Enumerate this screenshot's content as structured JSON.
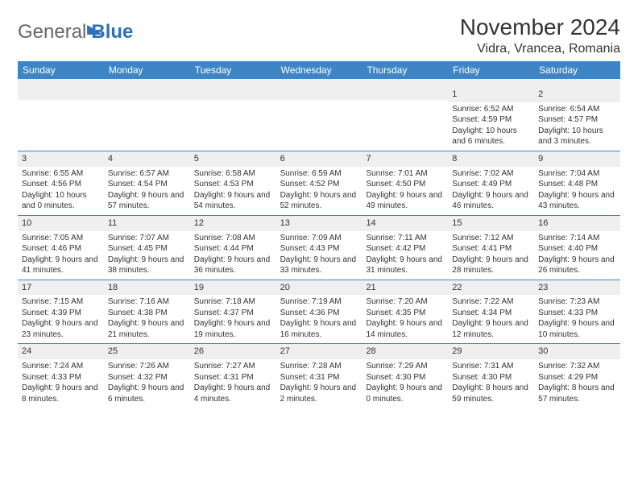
{
  "logo": {
    "text1": "General",
    "text2": "Blue"
  },
  "title": "November 2024",
  "location": "Vidra, Vrancea, Romania",
  "colors": {
    "header_bg": "#3d85c6",
    "header_text": "#ffffff",
    "spacer_bg": "#efefef",
    "border": "#3d85c6",
    "text": "#333333",
    "logo_gray": "#666666",
    "logo_blue": "#2d72b8"
  },
  "weekdays": [
    "Sunday",
    "Monday",
    "Tuesday",
    "Wednesday",
    "Thursday",
    "Friday",
    "Saturday"
  ],
  "weeks": [
    [
      null,
      null,
      null,
      null,
      null,
      {
        "n": "1",
        "sr": "Sunrise: 6:52 AM",
        "ss": "Sunset: 4:59 PM",
        "dl": "Daylight: 10 hours and 6 minutes."
      },
      {
        "n": "2",
        "sr": "Sunrise: 6:54 AM",
        "ss": "Sunset: 4:57 PM",
        "dl": "Daylight: 10 hours and 3 minutes."
      }
    ],
    [
      {
        "n": "3",
        "sr": "Sunrise: 6:55 AM",
        "ss": "Sunset: 4:56 PM",
        "dl": "Daylight: 10 hours and 0 minutes."
      },
      {
        "n": "4",
        "sr": "Sunrise: 6:57 AM",
        "ss": "Sunset: 4:54 PM",
        "dl": "Daylight: 9 hours and 57 minutes."
      },
      {
        "n": "5",
        "sr": "Sunrise: 6:58 AM",
        "ss": "Sunset: 4:53 PM",
        "dl": "Daylight: 9 hours and 54 minutes."
      },
      {
        "n": "6",
        "sr": "Sunrise: 6:59 AM",
        "ss": "Sunset: 4:52 PM",
        "dl": "Daylight: 9 hours and 52 minutes."
      },
      {
        "n": "7",
        "sr": "Sunrise: 7:01 AM",
        "ss": "Sunset: 4:50 PM",
        "dl": "Daylight: 9 hours and 49 minutes."
      },
      {
        "n": "8",
        "sr": "Sunrise: 7:02 AM",
        "ss": "Sunset: 4:49 PM",
        "dl": "Daylight: 9 hours and 46 minutes."
      },
      {
        "n": "9",
        "sr": "Sunrise: 7:04 AM",
        "ss": "Sunset: 4:48 PM",
        "dl": "Daylight: 9 hours and 43 minutes."
      }
    ],
    [
      {
        "n": "10",
        "sr": "Sunrise: 7:05 AM",
        "ss": "Sunset: 4:46 PM",
        "dl": "Daylight: 9 hours and 41 minutes."
      },
      {
        "n": "11",
        "sr": "Sunrise: 7:07 AM",
        "ss": "Sunset: 4:45 PM",
        "dl": "Daylight: 9 hours and 38 minutes."
      },
      {
        "n": "12",
        "sr": "Sunrise: 7:08 AM",
        "ss": "Sunset: 4:44 PM",
        "dl": "Daylight: 9 hours and 36 minutes."
      },
      {
        "n": "13",
        "sr": "Sunrise: 7:09 AM",
        "ss": "Sunset: 4:43 PM",
        "dl": "Daylight: 9 hours and 33 minutes."
      },
      {
        "n": "14",
        "sr": "Sunrise: 7:11 AM",
        "ss": "Sunset: 4:42 PM",
        "dl": "Daylight: 9 hours and 31 minutes."
      },
      {
        "n": "15",
        "sr": "Sunrise: 7:12 AM",
        "ss": "Sunset: 4:41 PM",
        "dl": "Daylight: 9 hours and 28 minutes."
      },
      {
        "n": "16",
        "sr": "Sunrise: 7:14 AM",
        "ss": "Sunset: 4:40 PM",
        "dl": "Daylight: 9 hours and 26 minutes."
      }
    ],
    [
      {
        "n": "17",
        "sr": "Sunrise: 7:15 AM",
        "ss": "Sunset: 4:39 PM",
        "dl": "Daylight: 9 hours and 23 minutes."
      },
      {
        "n": "18",
        "sr": "Sunrise: 7:16 AM",
        "ss": "Sunset: 4:38 PM",
        "dl": "Daylight: 9 hours and 21 minutes."
      },
      {
        "n": "19",
        "sr": "Sunrise: 7:18 AM",
        "ss": "Sunset: 4:37 PM",
        "dl": "Daylight: 9 hours and 19 minutes."
      },
      {
        "n": "20",
        "sr": "Sunrise: 7:19 AM",
        "ss": "Sunset: 4:36 PM",
        "dl": "Daylight: 9 hours and 16 minutes."
      },
      {
        "n": "21",
        "sr": "Sunrise: 7:20 AM",
        "ss": "Sunset: 4:35 PM",
        "dl": "Daylight: 9 hours and 14 minutes."
      },
      {
        "n": "22",
        "sr": "Sunrise: 7:22 AM",
        "ss": "Sunset: 4:34 PM",
        "dl": "Daylight: 9 hours and 12 minutes."
      },
      {
        "n": "23",
        "sr": "Sunrise: 7:23 AM",
        "ss": "Sunset: 4:33 PM",
        "dl": "Daylight: 9 hours and 10 minutes."
      }
    ],
    [
      {
        "n": "24",
        "sr": "Sunrise: 7:24 AM",
        "ss": "Sunset: 4:33 PM",
        "dl": "Daylight: 9 hours and 8 minutes."
      },
      {
        "n": "25",
        "sr": "Sunrise: 7:26 AM",
        "ss": "Sunset: 4:32 PM",
        "dl": "Daylight: 9 hours and 6 minutes."
      },
      {
        "n": "26",
        "sr": "Sunrise: 7:27 AM",
        "ss": "Sunset: 4:31 PM",
        "dl": "Daylight: 9 hours and 4 minutes."
      },
      {
        "n": "27",
        "sr": "Sunrise: 7:28 AM",
        "ss": "Sunset: 4:31 PM",
        "dl": "Daylight: 9 hours and 2 minutes."
      },
      {
        "n": "28",
        "sr": "Sunrise: 7:29 AM",
        "ss": "Sunset: 4:30 PM",
        "dl": "Daylight: 9 hours and 0 minutes."
      },
      {
        "n": "29",
        "sr": "Sunrise: 7:31 AM",
        "ss": "Sunset: 4:30 PM",
        "dl": "Daylight: 8 hours and 59 minutes."
      },
      {
        "n": "30",
        "sr": "Sunrise: 7:32 AM",
        "ss": "Sunset: 4:29 PM",
        "dl": "Daylight: 8 hours and 57 minutes."
      }
    ]
  ]
}
